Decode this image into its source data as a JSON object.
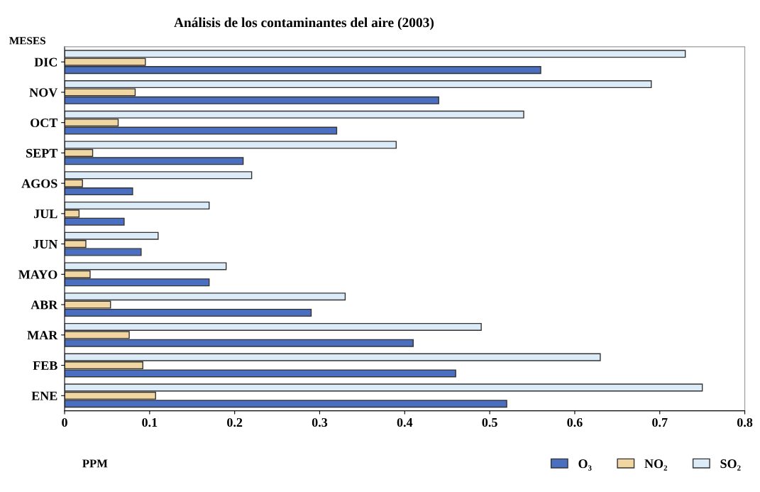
{
  "chart_data": {
    "type": "bar",
    "orientation": "horizontal",
    "title": "Análisis de los contaminantes del aire (2003)",
    "xlabel": "PPM",
    "ylabel": "MESES",
    "categories": [
      "DIC",
      "NOV",
      "OCT",
      "SEPT",
      "AGOS",
      "JUL",
      "JUN",
      "MAYO",
      "ABR",
      "MAR",
      "FEB",
      "ENE"
    ],
    "series": [
      {
        "name": "O₃",
        "color": "#4a6fc0",
        "values": [
          0.56,
          0.44,
          0.32,
          0.21,
          0.08,
          0.07,
          0.09,
          0.17,
          0.29,
          0.41,
          0.46,
          0.52
        ]
      },
      {
        "name": "NO₂",
        "color": "#f2d6a2",
        "values": [
          0.095,
          0.083,
          0.063,
          0.033,
          0.021,
          0.017,
          0.025,
          0.03,
          0.054,
          0.076,
          0.092,
          0.107
        ]
      },
      {
        "name": "SO₂",
        "color": "#dcebf8",
        "values": [
          0.73,
          0.69,
          0.54,
          0.39,
          0.22,
          0.17,
          0.11,
          0.19,
          0.33,
          0.49,
          0.63,
          0.75
        ]
      }
    ],
    "xlim": [
      0,
      0.8
    ],
    "xticks": [
      0,
      0.1,
      0.2,
      0.3,
      0.4,
      0.5,
      0.6,
      0.7,
      0.8
    ],
    "grid": false,
    "legend": "bottom right"
  }
}
